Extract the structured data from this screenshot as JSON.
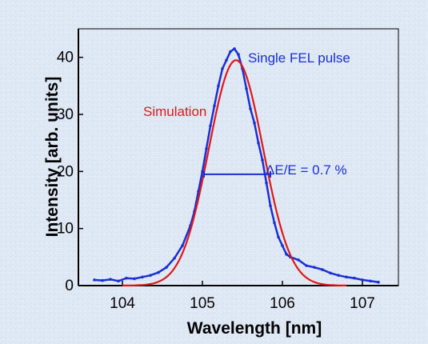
{
  "chart_data": {
    "type": "line",
    "xlabel": "Wavelength [nm]",
    "ylabel": "Intensity [arb. units]",
    "xlim": [
      103.45,
      107.45
    ],
    "ylim": [
      0,
      45
    ],
    "x_ticks": [
      104,
      105,
      106,
      107
    ],
    "y_ticks": [
      0,
      10,
      20,
      30,
      40
    ],
    "grid": false,
    "legend": "none",
    "series": [
      {
        "name": "Single FEL pulse",
        "color": "#1a2fd6",
        "x": [
          103.65,
          103.75,
          103.85,
          103.95,
          104.05,
          104.15,
          104.25,
          104.35,
          104.45,
          104.55,
          104.65,
          104.75,
          104.85,
          104.9,
          104.95,
          105.0,
          105.05,
          105.1,
          105.15,
          105.2,
          105.25,
          105.3,
          105.35,
          105.4,
          105.45,
          105.5,
          105.55,
          105.6,
          105.65,
          105.7,
          105.75,
          105.8,
          105.85,
          105.9,
          105.95,
          106.0,
          106.05,
          106.1,
          106.2,
          106.3,
          106.4,
          106.5,
          106.6,
          106.7,
          106.8,
          106.9,
          107.0,
          107.1,
          107.2
        ],
        "y": [
          1.0,
          0.9,
          1.1,
          0.8,
          1.3,
          1.2,
          1.5,
          1.8,
          2.3,
          3.2,
          4.8,
          7.0,
          10.5,
          13.0,
          16.5,
          20.0,
          24.0,
          28.0,
          31.5,
          35.0,
          38.0,
          39.5,
          41.0,
          41.5,
          40.5,
          38.0,
          34.5,
          31.0,
          28.5,
          25.0,
          22.0,
          18.0,
          14.0,
          11.0,
          8.5,
          7.0,
          5.5,
          5.0,
          4.5,
          3.5,
          3.2,
          2.8,
          2.2,
          1.8,
          1.5,
          1.3,
          1.0,
          0.8,
          0.6
        ]
      },
      {
        "name": "Simulation",
        "color": "#e01818",
        "model": "gaussian",
        "center": 105.42,
        "amplitude": 39.5,
        "sigma": 0.34,
        "x_range": [
          104.0,
          106.8
        ]
      }
    ],
    "annotations": [
      {
        "text": "Single FEL pulse",
        "color": "#1a2fd6"
      },
      {
        "text": "Simulation",
        "color": "#e01818"
      },
      {
        "text": "ΔE/E = 0.7 %",
        "color": "#1a2fd6",
        "marker": "fwhm",
        "y": 19.5,
        "x_from": 105.02,
        "x_to": 105.85
      }
    ]
  }
}
